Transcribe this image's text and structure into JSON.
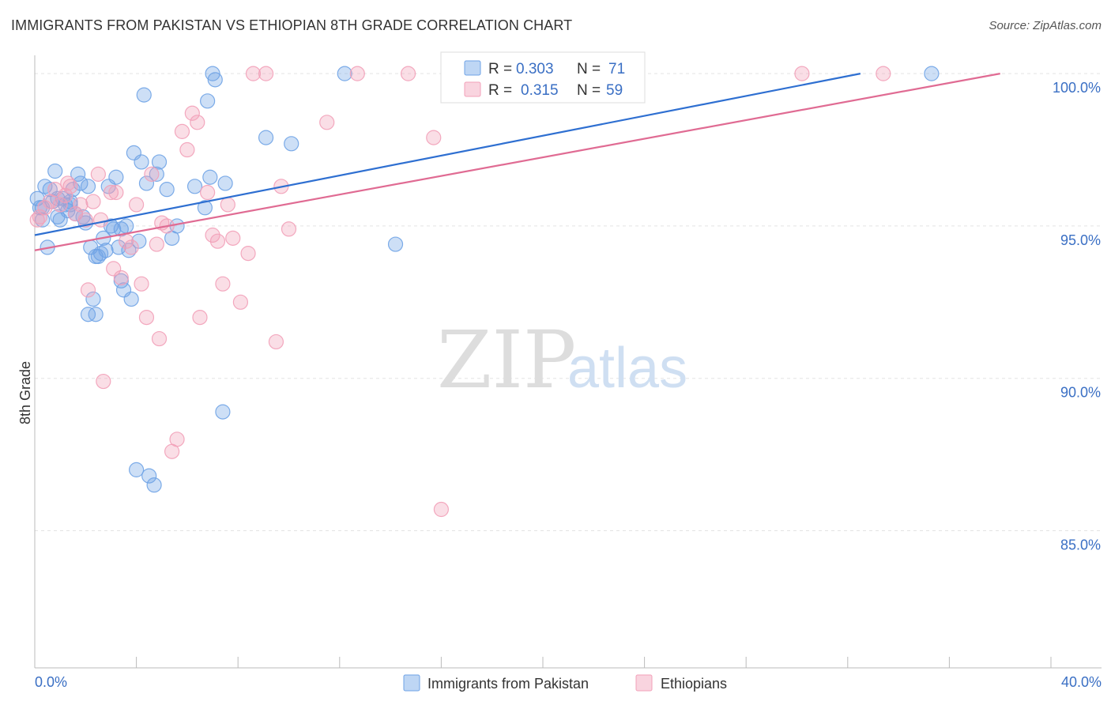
{
  "title": "IMMIGRANTS FROM PAKISTAN VS ETHIOPIAN 8TH GRADE CORRELATION CHART",
  "source": "Source: ZipAtlas.com",
  "watermark": {
    "zip": "ZIP",
    "atlas": "atlas"
  },
  "legend_top": {
    "rows": [
      {
        "r_label": "R =",
        "r_value": "0.303",
        "n_label": "N =",
        "n_value": "71",
        "color": "#6fa3e6"
      },
      {
        "r_label": "R =",
        "r_value": "0.315",
        "n_label": "N =",
        "n_value": "59",
        "color": "#f2a0b8"
      }
    ]
  },
  "legend_bottom": [
    {
      "label": "Immigrants from Pakistan",
      "color": "#6fa3e6"
    },
    {
      "label": "Ethiopians",
      "color": "#f2a0b8"
    }
  ],
  "chart_data": {
    "type": "scatter",
    "title": "IMMIGRANTS FROM PAKISTAN VS ETHIOPIAN 8TH GRADE CORRELATION CHART",
    "xlabel": "",
    "ylabel": "8th Grade",
    "xlim": [
      0,
      40
    ],
    "ylim": [
      80.5,
      100.6
    ],
    "x_tick_labels": {
      "0.0": "0.0%",
      "40.0": "40.0%"
    },
    "y_ticks": [
      100,
      95,
      90,
      85
    ],
    "y_tick_labels": [
      "100.0%",
      "95.0%",
      "90.0%",
      "85.0%"
    ],
    "grid": true,
    "legend_position": "bottom",
    "series": [
      {
        "name": "Immigrants from Pakistan",
        "color": "#6fa3e6",
        "line_color": "#2e6fd1",
        "trend": {
          "x": [
            0,
            32.5
          ],
          "y": [
            94.7,
            100.0
          ]
        },
        "points": [
          [
            0.2,
            95.6
          ],
          [
            0.3,
            95.2
          ],
          [
            0.4,
            96.3
          ],
          [
            0.5,
            94.3
          ],
          [
            0.6,
            96.2
          ],
          [
            0.7,
            95.8
          ],
          [
            0.8,
            96.8
          ],
          [
            0.9,
            95.3
          ],
          [
            1.0,
            95.2
          ],
          [
            1.1,
            95.9
          ],
          [
            1.2,
            95.7
          ],
          [
            1.3,
            95.5
          ],
          [
            1.4,
            95.8
          ],
          [
            1.5,
            96.2
          ],
          [
            1.6,
            95.4
          ],
          [
            1.7,
            96.7
          ],
          [
            1.8,
            96.4
          ],
          [
            1.9,
            95.3
          ],
          [
            2.0,
            95.1
          ],
          [
            2.1,
            96.3
          ],
          [
            2.2,
            94.3
          ],
          [
            2.3,
            92.6
          ],
          [
            2.4,
            92.1
          ],
          [
            2.5,
            94.0
          ],
          [
            2.6,
            94.1
          ],
          [
            2.7,
            94.6
          ],
          [
            2.8,
            94.2
          ],
          [
            2.9,
            96.3
          ],
          [
            3.0,
            95.0
          ],
          [
            3.1,
            94.9
          ],
          [
            3.2,
            96.6
          ],
          [
            3.3,
            94.3
          ],
          [
            3.4,
            93.2
          ],
          [
            3.5,
            92.9
          ],
          [
            3.6,
            95.0
          ],
          [
            3.7,
            94.2
          ],
          [
            3.8,
            92.6
          ],
          [
            3.9,
            97.4
          ],
          [
            4.0,
            87.0
          ],
          [
            4.1,
            94.5
          ],
          [
            4.2,
            97.1
          ],
          [
            4.3,
            99.3
          ],
          [
            4.4,
            96.4
          ],
          [
            4.5,
            86.8
          ],
          [
            4.7,
            86.5
          ],
          [
            4.8,
            96.7
          ],
          [
            4.9,
            97.1
          ],
          [
            5.2,
            96.2
          ],
          [
            5.4,
            94.6
          ],
          [
            5.6,
            95.0
          ],
          [
            6.3,
            96.3
          ],
          [
            6.7,
            95.6
          ],
          [
            6.8,
            99.1
          ],
          [
            6.9,
            96.6
          ],
          [
            7.0,
            100.0
          ],
          [
            7.1,
            99.8
          ],
          [
            7.5,
            96.4
          ],
          [
            7.4,
            88.9
          ],
          [
            9.1,
            97.9
          ],
          [
            10.1,
            97.7
          ],
          [
            12.2,
            100.0
          ],
          [
            14.2,
            94.4
          ],
          [
            16.5,
            100.0
          ],
          [
            35.3,
            100.0
          ],
          [
            0.3,
            95.6
          ],
          [
            0.1,
            95.9
          ],
          [
            1.4,
            95.7
          ],
          [
            3.4,
            94.9
          ],
          [
            2.4,
            94.0
          ],
          [
            2.1,
            92.1
          ],
          [
            0.9,
            95.9
          ]
        ]
      },
      {
        "name": "Ethiopians",
        "color": "#f2a0b8",
        "line_color": "#e06b93",
        "trend": {
          "x": [
            0,
            38.0
          ],
          "y": [
            94.2,
            100.0
          ]
        },
        "points": [
          [
            0.2,
            95.3
          ],
          [
            0.4,
            95.6
          ],
          [
            0.6,
            95.8
          ],
          [
            0.8,
            96.2
          ],
          [
            1.0,
            95.7
          ],
          [
            1.2,
            96.0
          ],
          [
            1.4,
            96.3
          ],
          [
            1.6,
            95.4
          ],
          [
            1.8,
            95.7
          ],
          [
            2.0,
            95.2
          ],
          [
            2.1,
            92.9
          ],
          [
            2.3,
            95.8
          ],
          [
            2.5,
            96.7
          ],
          [
            2.6,
            95.2
          ],
          [
            2.7,
            89.9
          ],
          [
            3.0,
            96.1
          ],
          [
            3.1,
            93.6
          ],
          [
            3.2,
            96.1
          ],
          [
            3.4,
            93.3
          ],
          [
            3.6,
            94.5
          ],
          [
            3.8,
            94.3
          ],
          [
            4.0,
            95.7
          ],
          [
            4.2,
            93.1
          ],
          [
            4.4,
            92.0
          ],
          [
            4.6,
            96.7
          ],
          [
            4.8,
            94.4
          ],
          [
            4.9,
            91.3
          ],
          [
            5.0,
            95.1
          ],
          [
            5.2,
            95.0
          ],
          [
            5.4,
            87.6
          ],
          [
            5.6,
            88.0
          ],
          [
            5.8,
            98.1
          ],
          [
            6.0,
            97.5
          ],
          [
            6.2,
            98.7
          ],
          [
            6.4,
            98.4
          ],
          [
            6.5,
            92.0
          ],
          [
            6.8,
            96.1
          ],
          [
            7.0,
            94.7
          ],
          [
            7.2,
            94.5
          ],
          [
            7.4,
            93.1
          ],
          [
            7.6,
            95.7
          ],
          [
            7.8,
            94.6
          ],
          [
            8.1,
            92.5
          ],
          [
            8.4,
            94.1
          ],
          [
            8.6,
            100.0
          ],
          [
            9.1,
            100.0
          ],
          [
            9.5,
            91.2
          ],
          [
            9.7,
            96.3
          ],
          [
            10.0,
            94.9
          ],
          [
            11.5,
            98.4
          ],
          [
            12.7,
            100.0
          ],
          [
            14.7,
            100.0
          ],
          [
            15.7,
            97.9
          ],
          [
            16.0,
            85.7
          ],
          [
            18.2,
            100.0
          ],
          [
            30.2,
            100.0
          ],
          [
            33.4,
            100.0
          ],
          [
            0.1,
            95.2
          ],
          [
            1.3,
            96.4
          ]
        ]
      }
    ]
  }
}
